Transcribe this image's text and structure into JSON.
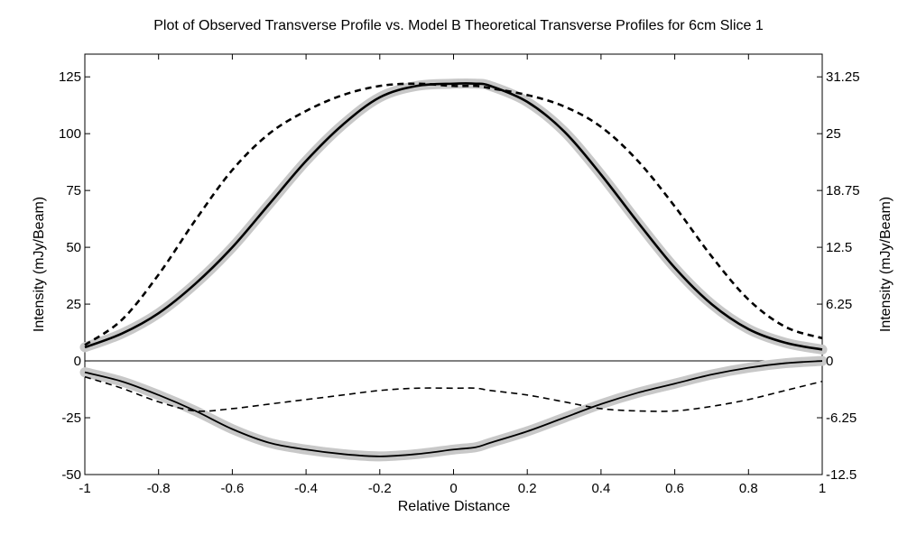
{
  "chart_data": {
    "type": "line",
    "title": "Plot of Observed Transverse Profile vs. Model B Theoretical Transverse Profiles for 6cm Slice 1",
    "xlabel": "Relative Distance",
    "ylabel_left": "Intensity (mJy/Beam)",
    "ylabel_right": "Intensity (mJy/Beam)",
    "xlim": [
      -1,
      1
    ],
    "ylim_left": [
      -50,
      135
    ],
    "ylim_right": [
      -12.5,
      33.75
    ],
    "x_ticks": [
      "-1",
      "-0.8",
      "-0.6",
      "-0.4",
      "-0.2",
      "0",
      "0.2",
      "0.4",
      "0.6",
      "0.8",
      "1"
    ],
    "y_ticks_left": [
      "-50",
      "-25",
      "0",
      "25",
      "50",
      "75",
      "100",
      "125"
    ],
    "y_ticks_right": [
      "-12.5",
      "-6.25",
      "0",
      "6.25",
      "12.5",
      "18.75",
      "25",
      "31.25"
    ],
    "grid": false,
    "legend": "none",
    "x": [
      -1.0,
      -0.9,
      -0.8,
      -0.7,
      -0.6,
      -0.5,
      -0.4,
      -0.3,
      -0.2,
      -0.1,
      0.0,
      0.06,
      0.1,
      0.2,
      0.3,
      0.4,
      0.5,
      0.6,
      0.7,
      0.8,
      0.9,
      1.0
    ],
    "series": [
      {
        "style": "observed-thick-gray",
        "color": "#c8c8c8",
        "panel": "top",
        "values": [
          6,
          12,
          21,
          34,
          50,
          69,
          88,
          104,
          116,
          121,
          122,
          122,
          121,
          114,
          101,
          82,
          61,
          41,
          25,
          14,
          8,
          5
        ]
      },
      {
        "style": "model-solid",
        "color": "#000000",
        "panel": "top",
        "values": [
          6,
          12,
          21,
          34,
          50,
          69,
          88,
          104,
          116,
          121,
          122,
          122,
          121,
          114,
          101,
          82,
          61,
          41,
          25,
          14,
          8,
          5
        ]
      },
      {
        "style": "model-dashed",
        "color": "#000000",
        "panel": "top",
        "values": [
          7,
          18,
          38,
          62,
          84,
          100,
          110,
          117,
          121,
          122,
          121,
          121,
          120,
          117,
          112,
          103,
          88,
          68,
          46,
          27,
          15,
          10
        ]
      },
      {
        "style": "observed-thick-gray",
        "color": "#c8c8c8",
        "panel": "bottom",
        "values": [
          -5,
          -9,
          -15,
          -22,
          -30,
          -36,
          -39,
          -41,
          -42,
          -41,
          -39,
          -38,
          -36,
          -31,
          -25,
          -19,
          -14,
          -10,
          -6,
          -3,
          -1,
          0
        ]
      },
      {
        "style": "model-solid",
        "color": "#000000",
        "panel": "bottom",
        "values": [
          -5,
          -9,
          -15,
          -22,
          -30,
          -36,
          -39,
          -41,
          -42,
          -41,
          -39,
          -38,
          -36,
          -31,
          -25,
          -19,
          -14,
          -10,
          -6,
          -3,
          -1,
          0
        ]
      },
      {
        "style": "model-dashed",
        "color": "#000000",
        "panel": "bottom",
        "values": [
          -7,
          -12,
          -18,
          -22,
          -21,
          -19,
          -17,
          -15,
          -13,
          -12,
          -12,
          -12,
          -13,
          -15,
          -18,
          -21,
          -22,
          -22,
          -20,
          -17,
          -13,
          -9
        ]
      }
    ]
  }
}
